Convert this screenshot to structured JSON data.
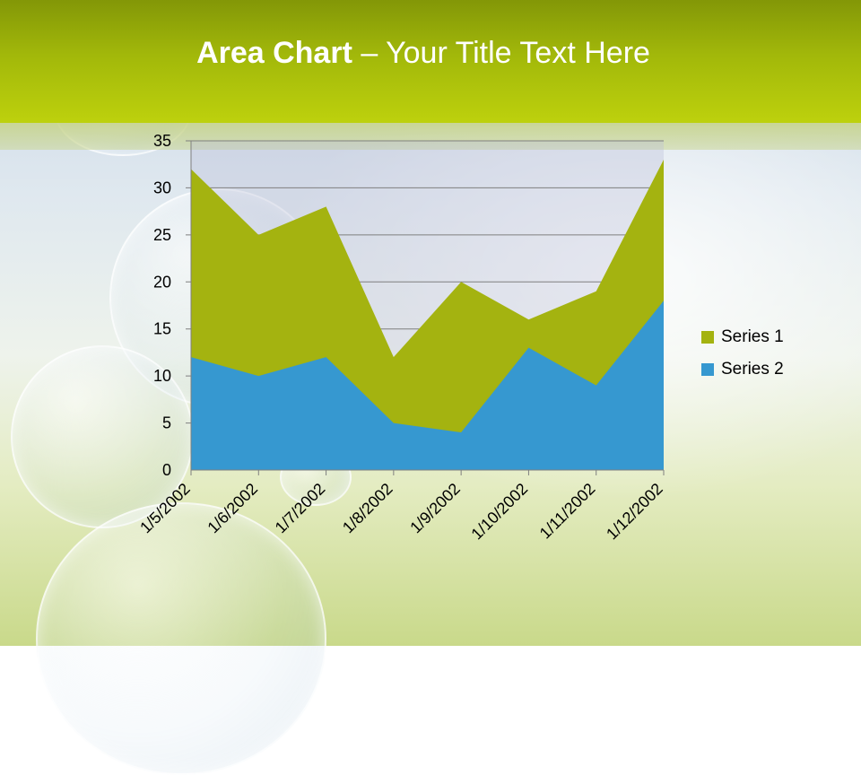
{
  "slide": {
    "title_bold": "Area Chart",
    "title_rest": " – Your Title Text Here"
  },
  "colors": {
    "series1": "#a4b310",
    "series2": "#3698d0",
    "header": "#a2b80a"
  },
  "chart_data": {
    "type": "area",
    "stacked": true,
    "categories": [
      "1/5/2002",
      "1/6/2002",
      "1/7/2002",
      "1/8/2002",
      "1/9/2002",
      "1/10/2002",
      "1/11/2002",
      "1/12/2002"
    ],
    "series": [
      {
        "name": "Series 1",
        "values": [
          20,
          15,
          16,
          7,
          16,
          3,
          10,
          15
        ],
        "color": "#a4b310"
      },
      {
        "name": "Series 2",
        "values": [
          12,
          10,
          12,
          5,
          4,
          13,
          9,
          18
        ],
        "color": "#3698d0"
      }
    ],
    "ylim": [
      0,
      35
    ],
    "yticks": [
      "0",
      "5",
      "10",
      "15",
      "20",
      "25",
      "30",
      "35"
    ],
    "grid": true,
    "legend": "right"
  }
}
